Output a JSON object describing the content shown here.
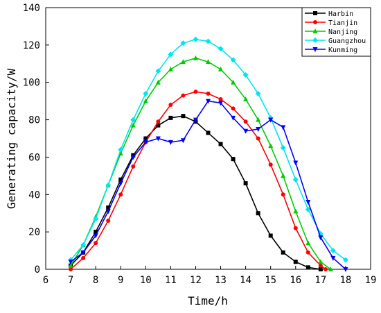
{
  "chart_data": {
    "type": "line",
    "title": "",
    "xlabel": "Time/h",
    "ylabel": "Generating capacity/W",
    "xlim": [
      6,
      19
    ],
    "ylim": [
      0,
      140
    ],
    "xticks": [
      6,
      7,
      8,
      9,
      10,
      11,
      12,
      13,
      14,
      15,
      16,
      17,
      18,
      19
    ],
    "yticks": [
      0,
      20,
      40,
      60,
      80,
      100,
      120,
      140
    ],
    "grid": false,
    "legend_position": "top-right",
    "series": [
      {
        "name": "Harbin",
        "color": "#000000",
        "marker": "square",
        "x": [
          7.0,
          7.5,
          8.0,
          8.5,
          9.0,
          9.5,
          10.0,
          10.5,
          11.0,
          11.5,
          12.0,
          12.5,
          13.0,
          13.5,
          14.0,
          14.5,
          15.0,
          15.5,
          16.0,
          16.5,
          17.0
        ],
        "y": [
          2,
          9,
          20,
          33,
          48,
          61,
          70,
          77,
          81,
          82,
          79,
          73,
          67,
          59,
          46,
          30,
          18,
          9,
          4,
          1,
          0
        ]
      },
      {
        "name": "Tianjin",
        "color": "#ff0000",
        "marker": "circle",
        "x": [
          7.0,
          7.5,
          8.0,
          8.5,
          9.0,
          9.5,
          10.0,
          10.5,
          11.0,
          11.5,
          12.0,
          12.5,
          13.0,
          13.5,
          14.0,
          14.5,
          15.0,
          15.5,
          16.0,
          16.5,
          17.0,
          17.2
        ],
        "y": [
          0,
          6,
          14,
          26,
          40,
          55,
          68,
          79,
          88,
          93,
          95,
          94,
          91,
          86,
          79,
          70,
          56,
          40,
          22,
          9,
          2,
          0
        ]
      },
      {
        "name": "Nanjing",
        "color": "#00cc00",
        "marker": "triangle-up",
        "x": [
          7.0,
          7.5,
          8.0,
          8.5,
          9.0,
          9.5,
          10.0,
          10.5,
          11.0,
          11.5,
          12.0,
          12.5,
          13.0,
          13.5,
          14.0,
          14.5,
          15.0,
          15.5,
          16.0,
          16.5,
          17.0,
          17.4
        ],
        "y": [
          2,
          13,
          28,
          45,
          62,
          77,
          90,
          100,
          107,
          111,
          113,
          111,
          107,
          100,
          91,
          80,
          66,
          50,
          31,
          14,
          4,
          0
        ]
      },
      {
        "name": "Guangzhou",
        "color": "#00e5ee",
        "marker": "diamond",
        "x": [
          7.0,
          7.5,
          8.0,
          8.5,
          9.0,
          9.5,
          10.0,
          10.5,
          11.0,
          11.5,
          12.0,
          12.5,
          13.0,
          13.5,
          14.0,
          14.5,
          15.0,
          15.5,
          16.0,
          16.5,
          17.0,
          17.5,
          18.0
        ],
        "y": [
          5,
          13,
          27,
          45,
          64,
          80,
          94,
          106,
          115,
          121,
          123,
          122,
          118,
          112,
          104,
          94,
          81,
          65,
          48,
          32,
          19,
          10,
          5
        ]
      },
      {
        "name": "Kunming",
        "color": "#0000ff",
        "marker": "triangle-down",
        "x": [
          7.0,
          7.5,
          8.0,
          8.5,
          9.0,
          9.5,
          10.0,
          10.5,
          11.0,
          11.5,
          12.0,
          12.5,
          13.0,
          13.5,
          14.0,
          14.5,
          15.0,
          15.5,
          16.0,
          16.5,
          17.0,
          17.5,
          18.0
        ],
        "y": [
          4,
          9,
          18,
          31,
          46,
          60,
          68,
          70,
          68,
          69,
          80,
          90,
          89,
          81,
          74,
          75,
          80,
          76,
          57,
          36,
          17,
          6,
          0
        ]
      }
    ]
  }
}
